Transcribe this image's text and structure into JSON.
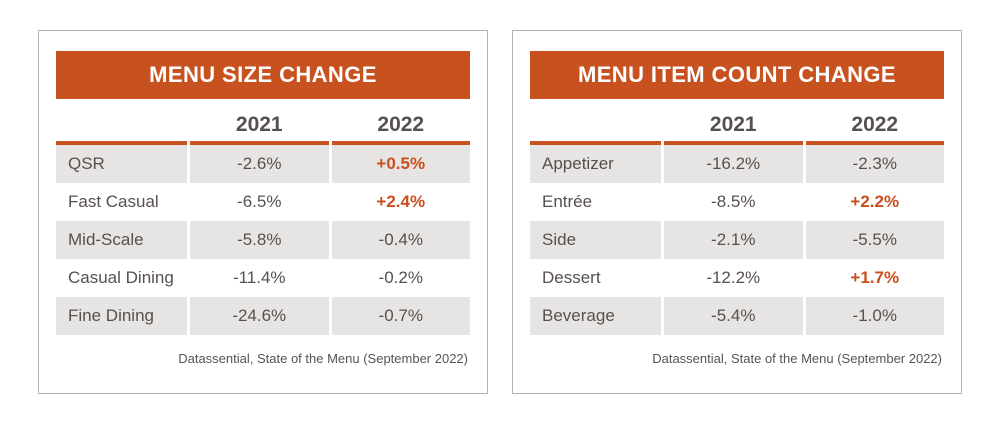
{
  "accent_color": "#c7521f",
  "row_stripe_color": "#e7e5e3",
  "text_color": "#57504e",
  "chart_data": [
    {
      "type": "table",
      "title": "MENU SIZE CHANGE",
      "columns": [
        "",
        "2021",
        "2022"
      ],
      "rows": [
        [
          "QSR",
          "-2.6%",
          "+0.5%"
        ],
        [
          "Fast Casual",
          "-6.5%",
          "+2.4%"
        ],
        [
          "Mid-Scale",
          "-5.8%",
          "-0.4%"
        ],
        [
          "Casual Dining",
          "-11.4%",
          "-0.2%"
        ],
        [
          "Fine Dining",
          "-24.6%",
          "-0.7%"
        ]
      ],
      "source": "Datassential, State of the Menu (September 2022)"
    },
    {
      "type": "table",
      "title": "MENU ITEM COUNT CHANGE",
      "columns": [
        "",
        "2021",
        "2022"
      ],
      "rows": [
        [
          "Appetizer",
          "-16.2%",
          "-2.3%"
        ],
        [
          "Entrée",
          "-8.5%",
          "+2.2%"
        ],
        [
          "Side",
          "-2.1%",
          "-5.5%"
        ],
        [
          "Dessert",
          "-12.2%",
          "+1.7%"
        ],
        [
          "Beverage",
          "-5.4%",
          "-1.0%"
        ]
      ],
      "source": "Datassential, State of the Menu (September 2022)"
    }
  ]
}
